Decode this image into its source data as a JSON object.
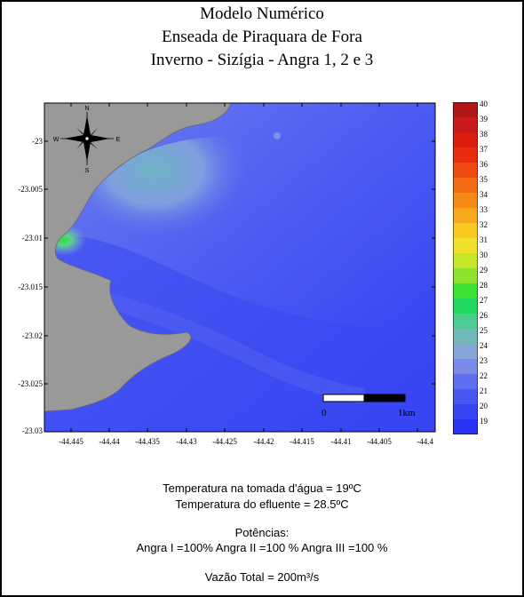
{
  "title": {
    "line1": "Modelo Numérico",
    "line2": "Enseada de Piraquara de Fora",
    "line3": "Inverno - Sizígia - Angra 1, 2 e 3"
  },
  "axes": {
    "y_ticks": [
      "-23",
      "-23.005",
      "-23.01",
      "-23.015",
      "-23.02",
      "-23.025",
      "-23.03"
    ],
    "x_ticks": [
      "-44.445",
      "-44.44",
      "-44.435",
      "-44.43",
      "-44.425",
      "-44.42",
      "-44.415",
      "-44.41",
      "-44.405",
      "-44.4"
    ]
  },
  "colorbar": {
    "labels": [
      "40",
      "39",
      "38",
      "37",
      "36",
      "35",
      "34",
      "33",
      "32",
      "31",
      "30",
      "29",
      "28",
      "27",
      "26",
      "25",
      "24",
      "23",
      "22",
      "21",
      "20",
      "19"
    ]
  },
  "scale_bar": {
    "left_label": "0",
    "right_label": "1km"
  },
  "compass": {
    "n": "N",
    "s": "S",
    "e": "E",
    "w": "W"
  },
  "captions": {
    "intake_temp": "Temperatura na tomada d'água = 19ºC",
    "effluent_temp": "Temperatura do efluente = 28.5ºC",
    "powers_header": "Potências:",
    "powers": "Angra I =100%  Angra II =100 %  Angra III =100 %",
    "total_flow": "Vazão Total = 200m³/s"
  },
  "colors": {
    "land": "#9a9a9a",
    "water_base": "#3b4df2",
    "plume_hot": "#2ee23a",
    "plume_warm": "#7ba5d9"
  }
}
